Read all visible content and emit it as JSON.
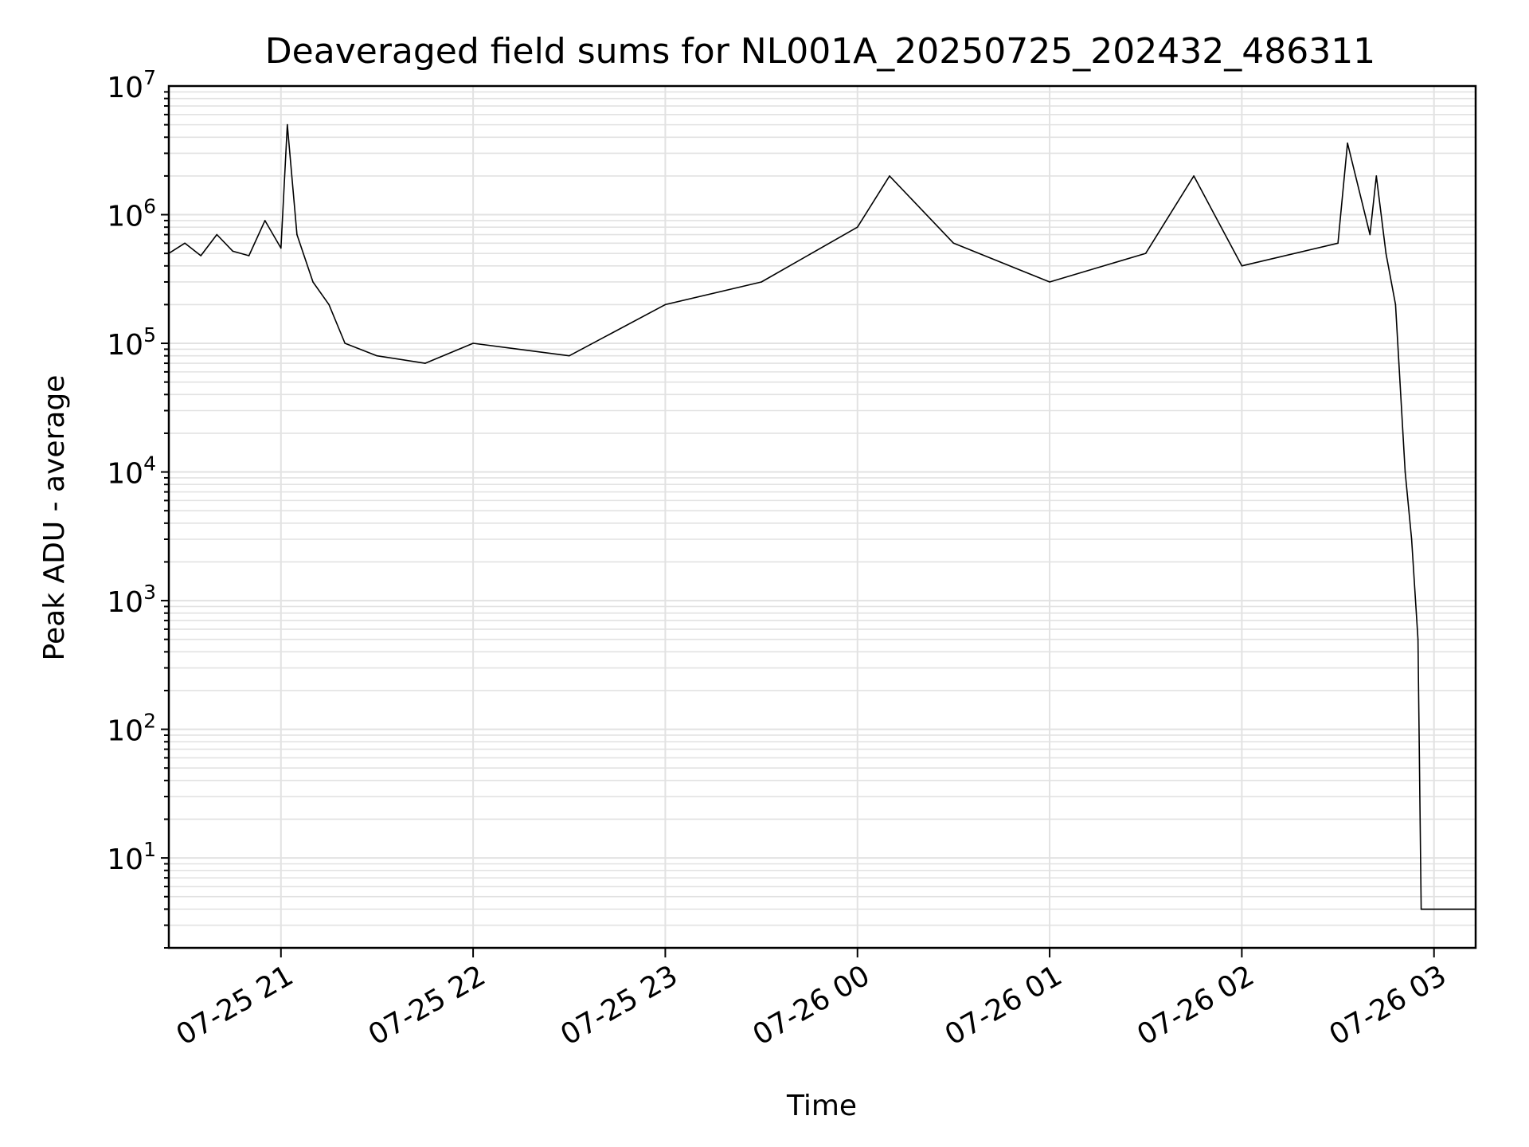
{
  "chart_data": {
    "type": "line",
    "title": "Deaveraged field sums for NL001A_20250725_202432_486311",
    "xlabel": "Time",
    "ylabel": "Peak ADU - average",
    "yscale": "log",
    "ylim": [
      2,
      10000000
    ],
    "xlim": [
      "2025-07-25 20:25",
      "2025-07-26 03:13"
    ],
    "grid": true,
    "line_color": "#000000",
    "x_ticks": [
      {
        "t": "2025-07-25 21:00",
        "label": "07-25 21"
      },
      {
        "t": "2025-07-25 22:00",
        "label": "07-25 22"
      },
      {
        "t": "2025-07-25 23:00",
        "label": "07-25 23"
      },
      {
        "t": "2025-07-26 00:00",
        "label": "07-26 00"
      },
      {
        "t": "2025-07-26 01:00",
        "label": "07-26 01"
      },
      {
        "t": "2025-07-26 02:00",
        "label": "07-26 02"
      },
      {
        "t": "2025-07-26 03:00",
        "label": "07-26 03"
      }
    ],
    "y_ticks": [
      {
        "value": 10,
        "base": "10",
        "exp": "1"
      },
      {
        "value": 100,
        "base": "10",
        "exp": "2"
      },
      {
        "value": 1000,
        "base": "10",
        "exp": "3"
      },
      {
        "value": 10000,
        "base": "10",
        "exp": "4"
      },
      {
        "value": 100000,
        "base": "10",
        "exp": "5"
      },
      {
        "value": 1000000,
        "base": "10",
        "exp": "6"
      },
      {
        "value": 10000000,
        "base": "10",
        "exp": "7"
      }
    ],
    "series": [
      {
        "points": [
          [
            "2025-07-25 20:25",
            500000
          ],
          [
            "2025-07-25 20:30",
            600000
          ],
          [
            "2025-07-25 20:35",
            480000
          ],
          [
            "2025-07-25 20:40",
            700000
          ],
          [
            "2025-07-25 20:45",
            520000
          ],
          [
            "2025-07-25 20:50",
            480000
          ],
          [
            "2025-07-25 20:55",
            900000
          ],
          [
            "2025-07-25 21:00",
            550000
          ],
          [
            "2025-07-25 21:02",
            5000000
          ],
          [
            "2025-07-25 21:05",
            700000
          ],
          [
            "2025-07-25 21:10",
            300000
          ],
          [
            "2025-07-25 21:15",
            200000
          ],
          [
            "2025-07-25 21:20",
            100000
          ],
          [
            "2025-07-25 21:30",
            80000
          ],
          [
            "2025-07-25 21:45",
            70000
          ],
          [
            "2025-07-25 22:00",
            100000
          ],
          [
            "2025-07-25 22:30",
            80000
          ],
          [
            "2025-07-25 23:00",
            200000
          ],
          [
            "2025-07-25 23:30",
            300000
          ],
          [
            "2025-07-26 00:00",
            800000
          ],
          [
            "2025-07-26 00:10",
            2000000
          ],
          [
            "2025-07-26 00:30",
            600000
          ],
          [
            "2025-07-26 01:00",
            300000
          ],
          [
            "2025-07-26 01:30",
            500000
          ],
          [
            "2025-07-26 01:45",
            2000000
          ],
          [
            "2025-07-26 02:00",
            400000
          ],
          [
            "2025-07-26 02:30",
            600000
          ],
          [
            "2025-07-26 02:33",
            3600000
          ],
          [
            "2025-07-26 02:40",
            700000
          ],
          [
            "2025-07-26 02:42",
            2000000
          ],
          [
            "2025-07-26 02:45",
            500000
          ],
          [
            "2025-07-26 02:48",
            200000
          ],
          [
            "2025-07-26 02:51",
            10000
          ],
          [
            "2025-07-26 02:53",
            3000
          ],
          [
            "2025-07-26 02:55",
            500
          ],
          [
            "2025-07-26 02:56",
            4
          ],
          [
            "2025-07-26 03:13",
            4
          ]
        ]
      }
    ]
  }
}
